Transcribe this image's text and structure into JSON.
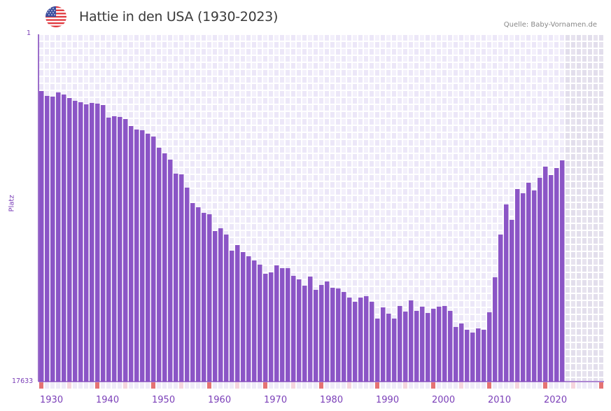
{
  "header": {
    "title": "Hattie in den USA (1930-2023)",
    "flag_icon": "us-flag-icon",
    "source": "Quelle: Baby-Vornamen.de"
  },
  "colors": {
    "bar": "#8b55c6",
    "axis": "#7b3fb8",
    "grid_bg_a": "#f3f0fb",
    "grid_bg_b": "#ece7f8",
    "future_bg": "#e4e0ee",
    "marker_decade": "#e57373",
    "marker_half": "#f5d5de",
    "marker_other": "#efebf8"
  },
  "chart_data": {
    "type": "bar",
    "title": "Hattie in den USA (1930-2023)",
    "xlabel": "",
    "ylabel": "Platz",
    "y_inverted": true,
    "ylim": [
      1,
      17633
    ],
    "y_ticks": [
      "1",
      "17633"
    ],
    "x_range": [
      1930,
      2030
    ],
    "x_ticks": [
      "1930",
      "1940",
      "1950",
      "1960",
      "1970",
      "1980",
      "1990",
      "2000",
      "2010",
      "2020"
    ],
    "future_shaded_from": 2024,
    "grid": true,
    "categories": [
      1930,
      1931,
      1932,
      1933,
      1934,
      1935,
      1936,
      1937,
      1938,
      1939,
      1940,
      1941,
      1942,
      1943,
      1944,
      1945,
      1946,
      1947,
      1948,
      1949,
      1950,
      1951,
      1952,
      1953,
      1954,
      1955,
      1956,
      1957,
      1958,
      1959,
      1960,
      1961,
      1962,
      1963,
      1964,
      1965,
      1966,
      1967,
      1968,
      1969,
      1970,
      1971,
      1972,
      1973,
      1974,
      1975,
      1976,
      1977,
      1978,
      1979,
      1980,
      1981,
      1982,
      1983,
      1984,
      1985,
      1986,
      1987,
      1988,
      1989,
      1990,
      1991,
      1992,
      1993,
      1994,
      1995,
      1996,
      1997,
      1998,
      1999,
      2000,
      2001,
      2002,
      2003,
      2004,
      2005,
      2006,
      2007,
      2008,
      2009,
      2010,
      2011,
      2012,
      2013,
      2014,
      2015,
      2016,
      2017,
      2018,
      2019,
      2020,
      2021,
      2022,
      2023
    ],
    "values": [
      2881,
      3129,
      3165,
      2952,
      3058,
      3236,
      3378,
      3449,
      3556,
      3485,
      3520,
      3592,
      4231,
      4160,
      4196,
      4303,
      4658,
      4836,
      4871,
      5049,
      5191,
      5760,
      6044,
      6364,
      7075,
      7111,
      7786,
      8569,
      8782,
      9066,
      9137,
      9990,
      9848,
      10168,
      10986,
      10701,
      11057,
      11270,
      11483,
      11696,
      12159,
      12088,
      11732,
      11874,
      11874,
      12265,
      12443,
      12763,
      12301,
      12976,
      12727,
      12550,
      12870,
      12906,
      13083,
      13368,
      13581,
      13368,
      13297,
      13581,
      14434,
      13865,
      14185,
      14434,
      13794,
      14079,
      13510,
      14043,
      13830,
      14150,
      13937,
      13830,
      13794,
      14043,
      14861,
      14683,
      15003,
      15145,
      14932,
      15003,
      14114,
      12337,
      10168,
      8640,
      9421,
      7857,
      8071,
      7537,
      7928,
      7289,
      6720,
      7147,
      6791,
      6400
    ]
  }
}
